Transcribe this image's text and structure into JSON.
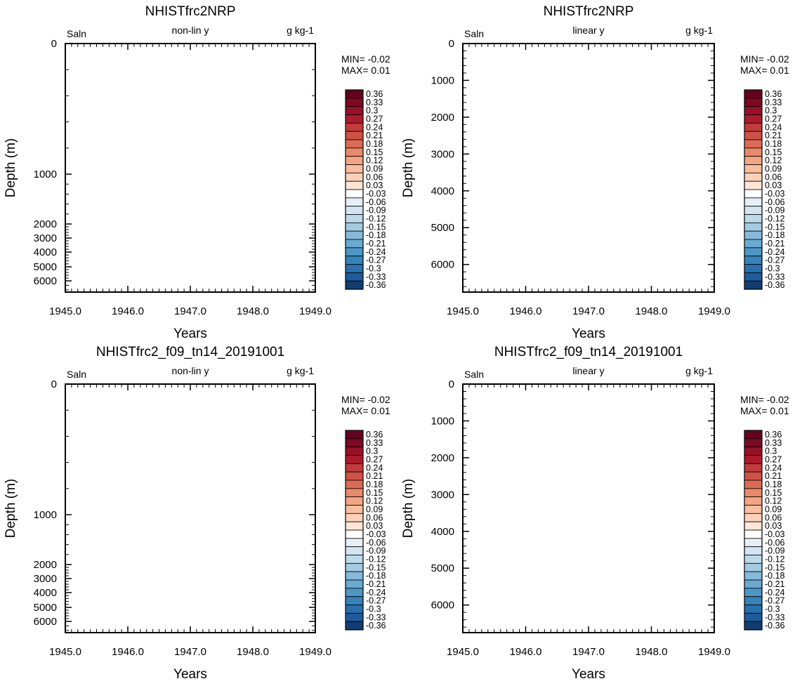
{
  "colorbar": {
    "labels": [
      "0.36",
      "0.33",
      "0.3",
      "0.27",
      "0.24",
      "0.21",
      "0.18",
      "0.15",
      "0.12",
      "0.09",
      "0.06",
      "0.03",
      "-0.03",
      "-0.06",
      "-0.09",
      "-0.12",
      "-0.15",
      "-0.18",
      "-0.21",
      "-0.24",
      "-0.27",
      "-0.3",
      "-0.33",
      "-0.36"
    ],
    "colors": [
      "#67001f",
      "#7f0822",
      "#981026",
      "#ad1a2c",
      "#c23b3b",
      "#cf5246",
      "#dc6b55",
      "#e8896b",
      "#f2a584",
      "#f7be9f",
      "#fad2bb",
      "#fde6d8",
      "#ffffff",
      "#e6eff5",
      "#d2e5f0",
      "#bcdaea",
      "#a2cbe2",
      "#86bada",
      "#6aa9d0",
      "#4d96c5",
      "#3682ba",
      "#2a6fae",
      "#1f5b9a",
      "#123d6e"
    ]
  },
  "chart_data": [
    {
      "type": "heatmap",
      "title": "NHISTfrc2NRP",
      "left_label": "Saln",
      "center_label": "non-lin y",
      "right_label": "g kg-1",
      "xlabel": "Years",
      "ylabel": "Depth (m)",
      "xlim": [
        1945.0,
        1949.0
      ],
      "x_tick_labels": [
        "1945.0",
        "1946.0",
        "1947.0",
        "1948.0",
        "1949.0"
      ],
      "y_scale": "non-linear",
      "ylim": [
        0,
        6500
      ],
      "y_tick_labels": [
        "0",
        "1000",
        "2000",
        "3000",
        "4000",
        "5000",
        "6000"
      ],
      "min_label": "MIN= -0.02",
      "max_label": "MAX=  0.01",
      "values": []
    },
    {
      "type": "heatmap",
      "title": "NHISTfrc2NRP",
      "left_label": "Saln",
      "center_label": "linear y",
      "right_label": "g kg-1",
      "xlabel": "Years",
      "ylabel": "Depth (m)",
      "xlim": [
        1945.0,
        1949.0
      ],
      "x_tick_labels": [
        "1945.0",
        "1946.0",
        "1947.0",
        "1948.0",
        "1949.0"
      ],
      "y_scale": "linear",
      "ylim": [
        0,
        6750
      ],
      "y_tick_labels": [
        "0",
        "1000",
        "2000",
        "3000",
        "4000",
        "5000",
        "6000"
      ],
      "min_label": "MIN= -0.02",
      "max_label": "MAX=  0.01",
      "values": []
    },
    {
      "type": "heatmap",
      "title": "NHISTfrc2_f09_tn14_20191001",
      "left_label": "Saln",
      "center_label": "non-lin y",
      "right_label": "g kg-1",
      "xlabel": "Years",
      "ylabel": "Depth (m)",
      "xlim": [
        1945.0,
        1949.0
      ],
      "x_tick_labels": [
        "1945.0",
        "1946.0",
        "1947.0",
        "1948.0",
        "1949.0"
      ],
      "y_scale": "non-linear",
      "ylim": [
        0,
        6500
      ],
      "y_tick_labels": [
        "0",
        "1000",
        "2000",
        "3000",
        "4000",
        "5000",
        "6000"
      ],
      "min_label": "MIN= -0.02",
      "max_label": "MAX=  0.01",
      "values": []
    },
    {
      "type": "heatmap",
      "title": "NHISTfrc2_f09_tn14_20191001",
      "left_label": "Saln",
      "center_label": "linear y",
      "right_label": "g kg-1",
      "xlabel": "Years",
      "ylabel": "Depth (m)",
      "xlim": [
        1945.0,
        1949.0
      ],
      "x_tick_labels": [
        "1945.0",
        "1946.0",
        "1947.0",
        "1948.0",
        "1949.0"
      ],
      "y_scale": "linear",
      "ylim": [
        0,
        6750
      ],
      "y_tick_labels": [
        "0",
        "1000",
        "2000",
        "3000",
        "4000",
        "5000",
        "6000"
      ],
      "min_label": "MIN= -0.02",
      "max_label": "MAX=  0.01",
      "values": []
    }
  ]
}
